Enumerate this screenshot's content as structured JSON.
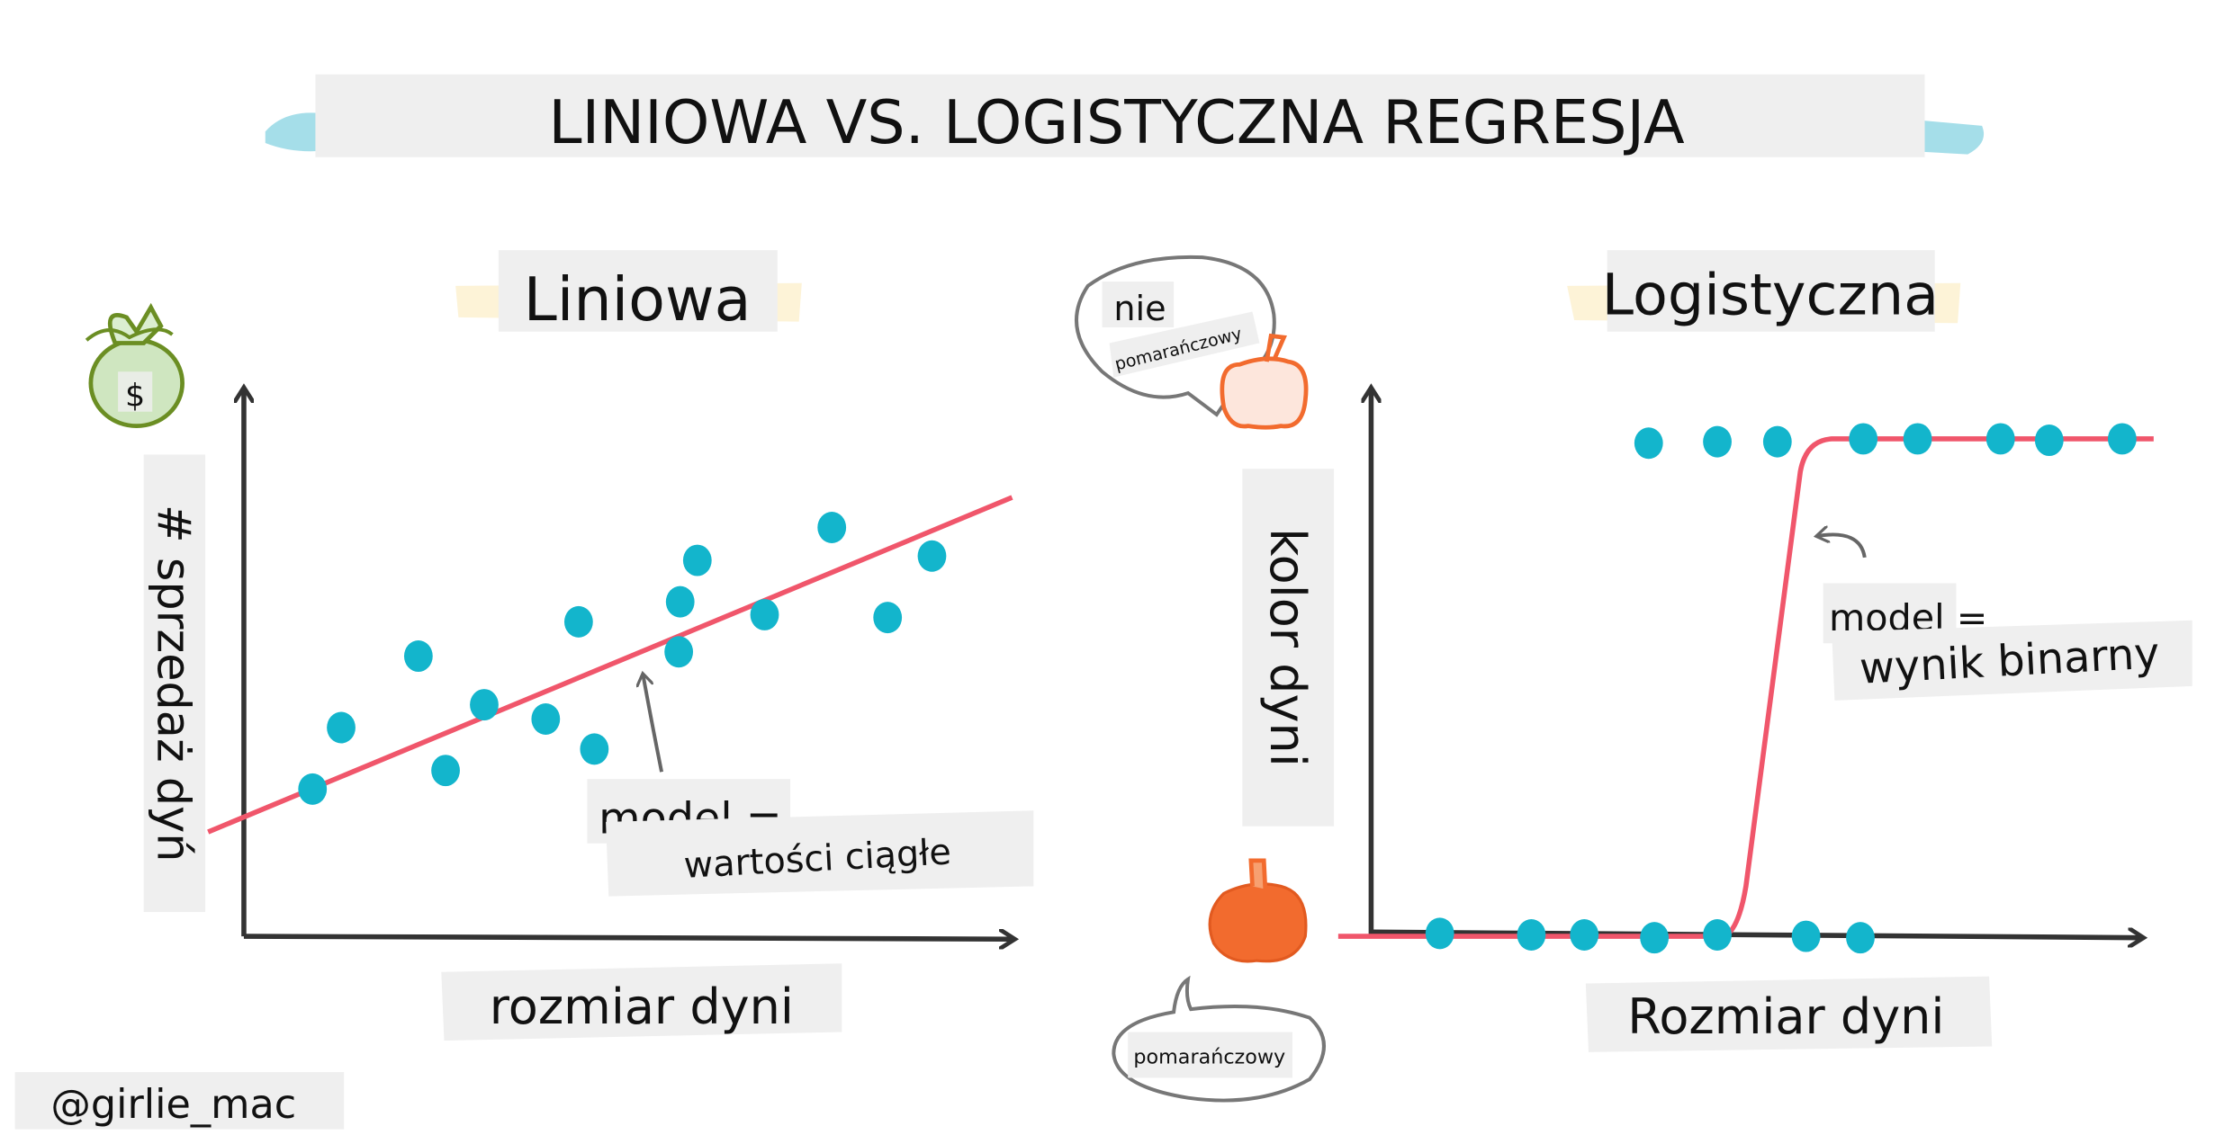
{
  "title": "LINIOWA VS. LOGISTYCZNA REGRESJA",
  "linear": {
    "heading": "Liniowa",
    "y_label": "# sprzedaż dyń",
    "x_label": "rozmiar dyni",
    "model_label": "model =",
    "model_value": "wartości ciągłe",
    "icon": "money-bag-icon",
    "icon_symbol": "$"
  },
  "logistic": {
    "heading": "Logistyczna",
    "y_label": "kolor dyni",
    "x_label": "Rozmiar dyni",
    "model_label": "model =",
    "model_value": "wynik binarny",
    "bubble_top_line1": "nie",
    "bubble_top_line2": "pomarańczowy",
    "bubble_bottom": "pomarańczowy",
    "icons": [
      "pumpkin-outline-icon",
      "pumpkin-filled-icon"
    ]
  },
  "credit": "@girlie_mac",
  "colors": {
    "points": "#13b5cc",
    "model_line": "#f0566b",
    "axes": "#333333",
    "label_bg": "#efefef",
    "pumpkin": "#f26b2e",
    "money_bag": "#6b8e23",
    "title_accent": "#7fd0e0",
    "heading_accent": "#fbe8b0"
  }
}
